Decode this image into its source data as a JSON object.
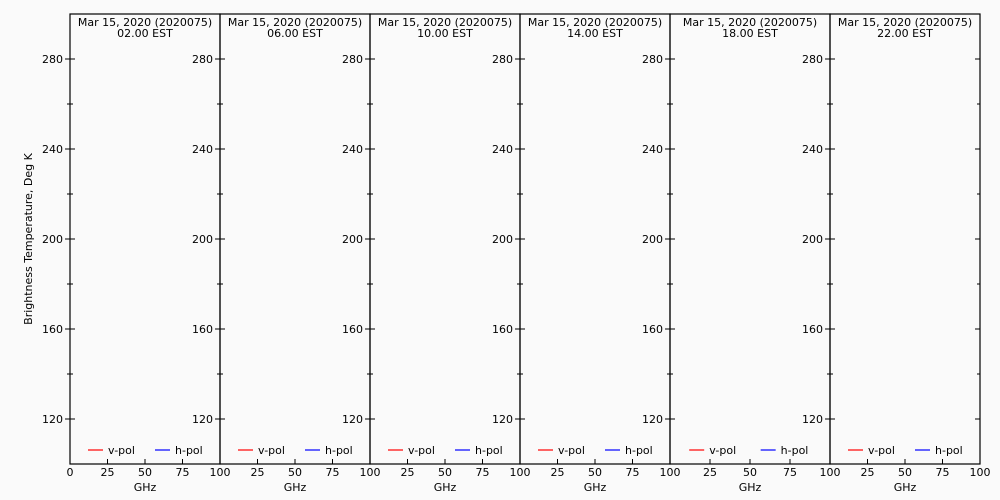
{
  "chart_data": [
    {
      "type": "line",
      "title": "Mar 15, 2020 (2020075)",
      "subtitle": "02.00 EST",
      "xlabel": "GHz",
      "ylabel": "Brightness Temperature, Deg K",
      "xlim": [
        0,
        100
      ],
      "ylim": [
        100,
        300
      ],
      "xticks": [
        0,
        25,
        50,
        75,
        100
      ],
      "yticks": [
        120,
        160,
        200,
        240,
        280
      ],
      "legend": "bottom",
      "series": [
        {
          "name": "v-pol",
          "color": "#ff0000",
          "values": []
        },
        {
          "name": "h-pol",
          "color": "#0000ff",
          "values": []
        }
      ]
    },
    {
      "type": "line",
      "title": "Mar 15, 2020 (2020075)",
      "subtitle": "06.00 EST",
      "xlabel": "GHz",
      "xlim": [
        0,
        100
      ],
      "ylim": [
        100,
        300
      ],
      "xticks": [
        0,
        25,
        50,
        75,
        100
      ],
      "yticks": [
        120,
        160,
        200,
        240,
        280
      ],
      "legend": "bottom",
      "series": [
        {
          "name": "v-pol",
          "color": "#ff0000",
          "values": []
        },
        {
          "name": "h-pol",
          "color": "#0000ff",
          "values": []
        }
      ]
    },
    {
      "type": "line",
      "title": "Mar 15, 2020 (2020075)",
      "subtitle": "10.00 EST",
      "xlabel": "GHz",
      "xlim": [
        0,
        100
      ],
      "ylim": [
        100,
        300
      ],
      "xticks": [
        0,
        25,
        50,
        75,
        100
      ],
      "yticks": [
        120,
        160,
        200,
        240,
        280
      ],
      "legend": "bottom",
      "series": [
        {
          "name": "v-pol",
          "color": "#ff0000",
          "values": []
        },
        {
          "name": "h-pol",
          "color": "#0000ff",
          "values": []
        }
      ]
    },
    {
      "type": "line",
      "title": "Mar 15, 2020 (2020075)",
      "subtitle": "14.00 EST",
      "xlabel": "GHz",
      "xlim": [
        0,
        100
      ],
      "ylim": [
        100,
        300
      ],
      "xticks": [
        0,
        25,
        50,
        75,
        100
      ],
      "yticks": [
        120,
        160,
        200,
        240,
        280
      ],
      "legend": "bottom",
      "series": [
        {
          "name": "v-pol",
          "color": "#ff0000",
          "values": []
        },
        {
          "name": "h-pol",
          "color": "#0000ff",
          "values": []
        }
      ]
    },
    {
      "type": "line",
      "title": "Mar 15, 2020 (2020075)",
      "subtitle": "18.00 EST",
      "xlabel": "GHz",
      "xlim": [
        0,
        100
      ],
      "ylim": [
        100,
        300
      ],
      "xticks": [
        0,
        25,
        50,
        75,
        100
      ],
      "yticks": [
        120,
        160,
        200,
        240,
        280
      ],
      "legend": "bottom",
      "series": [
        {
          "name": "v-pol",
          "color": "#ff0000",
          "values": []
        },
        {
          "name": "h-pol",
          "color": "#0000ff",
          "values": []
        }
      ]
    },
    {
      "type": "line",
      "title": "Mar 15, 2020 (2020075)",
      "subtitle": "22.00 EST",
      "xlabel": "GHz",
      "xlim": [
        0,
        100
      ],
      "ylim": [
        100,
        300
      ],
      "xticks": [
        0,
        25,
        50,
        75,
        100
      ],
      "yticks": [
        120,
        160,
        200,
        240,
        280
      ],
      "legend": "bottom",
      "series": [
        {
          "name": "v-pol",
          "color": "#ff0000",
          "values": []
        },
        {
          "name": "h-pol",
          "color": "#0000ff",
          "values": []
        }
      ]
    }
  ]
}
